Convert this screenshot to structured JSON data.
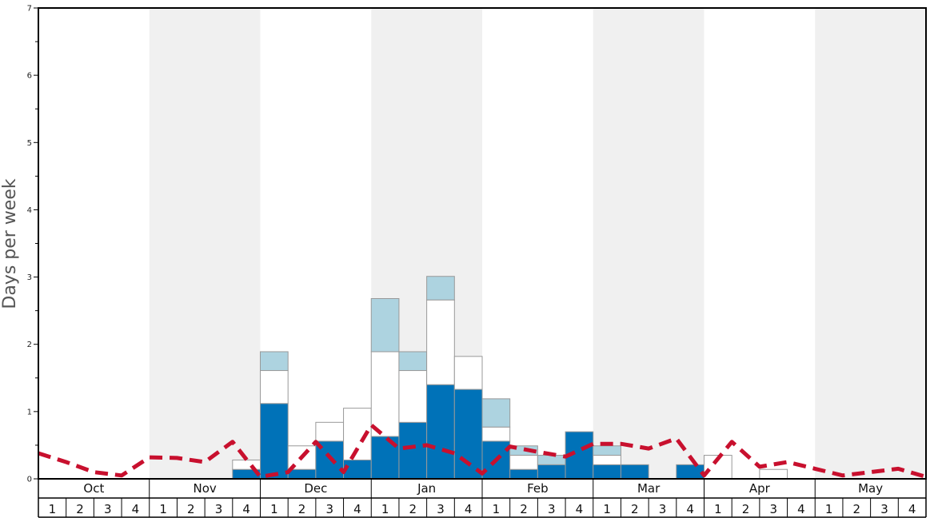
{
  "chart_data": {
    "type": "bar",
    "title": "",
    "xlabel": "",
    "ylabel": "Days per week",
    "ylim": [
      0,
      7
    ],
    "yticks": [
      "0",
      "1",
      "2",
      "3",
      "4",
      "5",
      "6",
      "7"
    ],
    "grid": false,
    "legend": "none",
    "stacked": true,
    "months": [
      "Oct",
      "Nov",
      "Dec",
      "Jan",
      "Feb",
      "Mar",
      "Apr",
      "May"
    ],
    "week_labels": [
      "1",
      "2",
      "3",
      "4"
    ],
    "shaded_months": [
      "Nov",
      "Jan",
      "Mar",
      "May"
    ],
    "colors": {
      "dark": "#0072b8",
      "white": "#ffffff",
      "light": "#add3e0",
      "line": "#c8102e",
      "shade": "#f0f0f0",
      "bar_edge": "#999999"
    },
    "series": [
      {
        "values": [
          0,
          0,
          0,
          0,
          0,
          0,
          0,
          0.14,
          1.12,
          0.14,
          0.56,
          0.28,
          0.63,
          0.84,
          1.4,
          1.33,
          0.56,
          0.14,
          0.21,
          0.7,
          0.21,
          0.21,
          0,
          0.21,
          0,
          0,
          0,
          0,
          0,
          0,
          0,
          0
        ],
        "color": "dark"
      },
      {
        "values": [
          0,
          0,
          0,
          0,
          0,
          0,
          0,
          0.14,
          0.49,
          0.35,
          0.28,
          0.77,
          1.26,
          0.77,
          1.26,
          0.49,
          0.21,
          0.21,
          0,
          0,
          0.14,
          0,
          0,
          0,
          0.35,
          0,
          0.14,
          0,
          0,
          0,
          0,
          0
        ],
        "color": "white"
      },
      {
        "values": [
          0,
          0,
          0,
          0,
          0,
          0,
          0,
          0,
          0.28,
          0,
          0,
          0,
          0.79,
          0.28,
          0.35,
          0,
          0.42,
          0.14,
          0.14,
          0,
          0.14,
          0,
          0,
          0,
          0,
          0,
          0,
          0,
          0,
          0,
          0,
          0
        ],
        "color": "light"
      }
    ],
    "line": {
      "style": "dashed",
      "values": [
        0.38,
        0.25,
        0.1,
        0.05,
        0.32,
        0.31,
        0.25,
        0.55,
        0.03,
        0.1,
        0.55,
        0.1,
        0.8,
        0.45,
        0.5,
        0.38,
        0.08,
        0.48,
        0.4,
        0.33,
        0.52,
        0.52,
        0.45,
        0.6,
        0.05,
        0.55,
        0.18,
        0.25,
        0.15,
        0.05,
        0.1,
        0.15,
        0.03
      ]
    }
  }
}
